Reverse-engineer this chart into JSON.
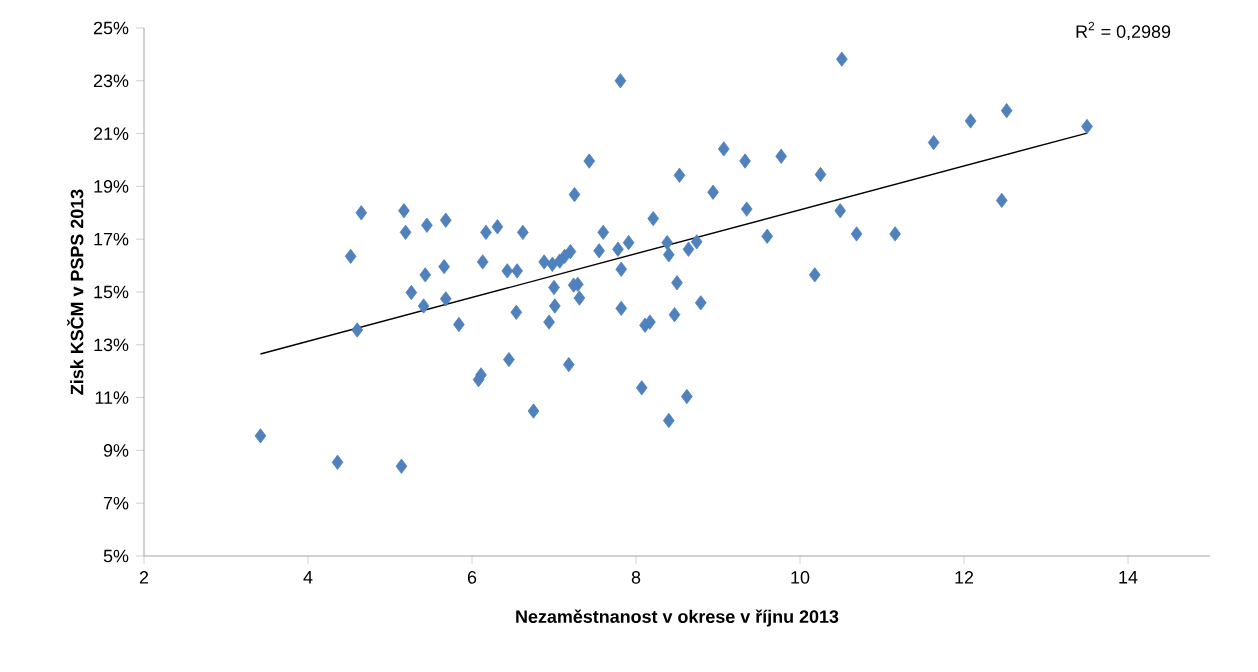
{
  "chart_data": {
    "type": "scatter",
    "xlabel": "Nezaměstnanost v okrese v říjnu 2013",
    "ylabel": "Zisk KSČM v PSPS 2013",
    "annotations": [
      "R$^{2}$ = 0,2989"
    ],
    "xlim": [
      2,
      15
    ],
    "ylim": [
      5,
      25
    ],
    "xticks": [
      2,
      4,
      6,
      8,
      10,
      12,
      14
    ],
    "yticks": [
      {
        "value": 5,
        "label": "5%"
      },
      {
        "value": 7,
        "label": "7%"
      },
      {
        "value": 9,
        "label": "9%"
      },
      {
        "value": 11,
        "label": "11%"
      },
      {
        "value": 13,
        "label": "13%"
      },
      {
        "value": 15,
        "label": "15%"
      },
      {
        "value": 17,
        "label": "17%"
      },
      {
        "value": 19,
        "label": "19%"
      },
      {
        "value": 21,
        "label": "21%"
      },
      {
        "value": 23,
        "label": "23%"
      },
      {
        "value": 25,
        "label": "25%"
      }
    ],
    "grid": false,
    "series": [
      {
        "color": "#4f81bd",
        "marker": "diamond",
        "x": [
          3.42,
          4.36,
          5.14,
          4.52,
          4.65,
          4.6,
          5.17,
          5.19,
          5.26,
          5.41,
          5.43,
          5.45,
          5.66,
          5.68,
          5.68,
          5.84,
          6.08,
          6.11,
          6.13,
          6.17,
          6.31,
          6.43,
          6.55,
          6.54,
          6.45,
          6.62,
          6.75,
          6.88,
          6.94,
          6.98,
          7.0,
          7.01,
          7.07,
          7.13,
          7.2,
          7.18,
          7.25,
          7.24,
          7.29,
          7.31,
          7.43,
          7.55,
          7.6,
          7.78,
          7.81,
          7.82,
          7.82,
          7.91,
          8.07,
          8.11,
          8.17,
          8.21,
          8.38,
          8.4,
          8.4,
          8.47,
          8.5,
          8.53,
          8.62,
          8.64,
          8.74,
          8.79,
          8.94,
          9.07,
          9.33,
          9.35,
          9.6,
          9.77,
          10.18,
          10.25,
          10.49,
          10.51,
          10.69,
          11.16,
          11.63,
          12.08,
          12.46,
          12.52,
          13.5
        ],
        "values": [
          9.55,
          8.55,
          8.4,
          16.35,
          18.0,
          13.56,
          18.08,
          17.26,
          14.98,
          14.47,
          15.65,
          17.53,
          15.96,
          17.72,
          14.74,
          13.77,
          11.68,
          11.86,
          16.14,
          17.26,
          17.47,
          15.8,
          15.8,
          14.23,
          12.44,
          17.26,
          10.49,
          16.14,
          13.86,
          16.05,
          15.17,
          14.47,
          16.17,
          16.35,
          16.53,
          12.25,
          18.69,
          15.26,
          15.29,
          14.77,
          19.96,
          16.56,
          17.26,
          16.62,
          23.0,
          15.86,
          14.38,
          16.87,
          11.37,
          13.74,
          13.86,
          17.78,
          16.87,
          16.41,
          10.13,
          14.14,
          15.35,
          19.42,
          11.04,
          16.62,
          16.9,
          14.59,
          18.78,
          20.42,
          19.96,
          18.14,
          17.11,
          20.14,
          15.65,
          19.45,
          18.08,
          23.82,
          17.2,
          17.2,
          20.66,
          21.48,
          18.47,
          21.87,
          21.27
        ]
      },
      {
        "type": "line",
        "color": "#000000",
        "marker": "none",
        "line_style": "solid",
        "x": [
          3.42,
          13.5
        ],
        "values": [
          12.65,
          21.02
        ]
      }
    ]
  }
}
